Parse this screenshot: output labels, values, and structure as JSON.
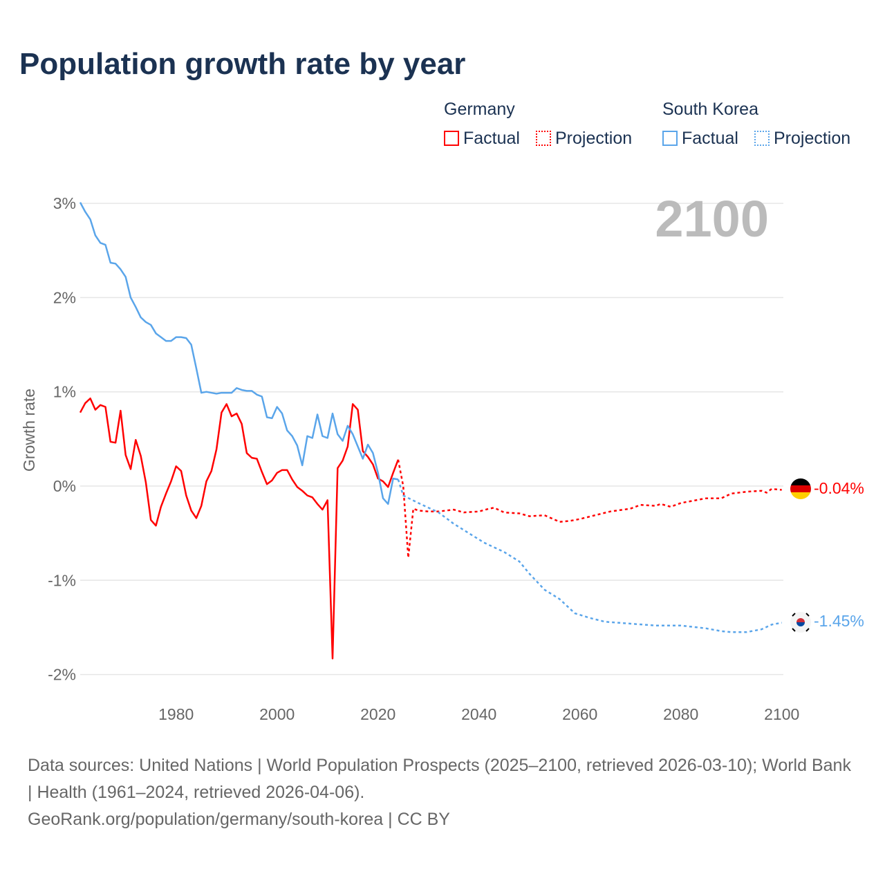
{
  "title": "Population growth rate by year",
  "legend": {
    "germany": {
      "name": "Germany",
      "factual": "Factual",
      "projection": "Projection"
    },
    "korea": {
      "name": "South Korea",
      "factual": "Factual",
      "projection": "Projection"
    }
  },
  "colors": {
    "germany": "#ff0000",
    "korea": "#5aa5ea",
    "title": "#1b3252"
  },
  "footer": {
    "sources": "Data sources: United Nations | World Population Prospects (2025–2100, retrieved 2026-03-10); World Bank | Health (1961–2024, retrieved 2026-04-06).",
    "credit": "GeoRank.org/population/germany/south-korea | CC BY"
  },
  "chart_data": {
    "type": "line",
    "title": "Population growth rate by year",
    "ylabel": "Growth rate",
    "xlabel": "",
    "year_label": "2100",
    "xlim": [
      1961,
      2100
    ],
    "ylim": [
      -2.2,
      3.2
    ],
    "x_ticks": [
      1980,
      2000,
      2020,
      2040,
      2060,
      2080,
      2100
    ],
    "x_tick_labels": [
      "1980",
      "2000",
      "2020",
      "2040",
      "2060",
      "2080",
      "2100"
    ],
    "y_ticks": [
      3,
      2,
      1,
      0,
      -1,
      -2
    ],
    "y_tick_labels": [
      "3%",
      "2%",
      "1%",
      "0%",
      "-1%",
      "-2%"
    ],
    "grid": true,
    "legend_position": "top-right",
    "series": [
      {
        "name": "Germany",
        "kind": "factual",
        "color": "#ff0000",
        "start_year": 1961,
        "values": [
          0.78,
          0.88,
          0.93,
          0.81,
          0.86,
          0.84,
          0.47,
          0.46,
          0.8,
          0.33,
          0.18,
          0.49,
          0.32,
          0.04,
          -0.36,
          -0.42,
          -0.22,
          -0.08,
          0.05,
          0.21,
          0.16,
          -0.1,
          -0.26,
          -0.34,
          -0.21,
          0.05,
          0.16,
          0.39,
          0.78,
          0.87,
          0.74,
          0.77,
          0.66,
          0.35,
          0.3,
          0.29,
          0.15,
          0.02,
          0.06,
          0.14,
          0.17,
          0.17,
          0.07,
          -0.01,
          -0.05,
          -0.1,
          -0.12,
          -0.19,
          -0.25,
          -0.15,
          -1.83,
          0.19,
          0.27,
          0.42,
          0.87,
          0.81,
          0.37,
          0.31,
          0.23,
          0.08,
          0.05,
          -0.01,
          0.14,
          0.28
        ]
      },
      {
        "name": "Germany",
        "kind": "projection",
        "color": "#ff0000",
        "years": [
          2024,
          2025,
          2026,
          2027,
          2028,
          2030,
          2032,
          2035,
          2037,
          2040,
          2042,
          2043,
          2045,
          2048,
          2050,
          2053,
          2056,
          2058,
          2060,
          2063,
          2066,
          2070,
          2072,
          2075,
          2076,
          2078,
          2080,
          2085,
          2088,
          2090,
          2093,
          2096,
          2097,
          2098,
          2100
        ],
        "values": [
          0.28,
          0.0,
          -0.76,
          -0.24,
          -0.26,
          -0.27,
          -0.27,
          -0.25,
          -0.28,
          -0.27,
          -0.24,
          -0.23,
          -0.28,
          -0.29,
          -0.32,
          -0.31,
          -0.38,
          -0.37,
          -0.35,
          -0.31,
          -0.27,
          -0.24,
          -0.2,
          -0.21,
          -0.19,
          -0.22,
          -0.18,
          -0.13,
          -0.13,
          -0.08,
          -0.06,
          -0.05,
          -0.07,
          -0.03,
          -0.04
        ],
        "end_label": "-0.04%"
      },
      {
        "name": "South Korea",
        "kind": "factual",
        "color": "#5aa5ea",
        "start_year": 1961,
        "values": [
          3.01,
          2.91,
          2.83,
          2.66,
          2.58,
          2.56,
          2.37,
          2.36,
          2.3,
          2.22,
          2.0,
          1.9,
          1.79,
          1.74,
          1.71,
          1.62,
          1.58,
          1.54,
          1.54,
          1.58,
          1.58,
          1.57,
          1.5,
          1.25,
          0.99,
          1.0,
          0.99,
          0.98,
          0.99,
          0.99,
          0.99,
          1.04,
          1.02,
          1.01,
          1.01,
          0.97,
          0.95,
          0.73,
          0.72,
          0.84,
          0.77,
          0.59,
          0.53,
          0.43,
          0.22,
          0.53,
          0.51,
          0.76,
          0.53,
          0.51,
          0.77,
          0.55,
          0.48,
          0.64,
          0.55,
          0.42,
          0.29,
          0.44,
          0.35,
          0.14,
          -0.13,
          -0.19,
          0.08,
          0.07
        ]
      },
      {
        "name": "South Korea",
        "kind": "projection",
        "color": "#5aa5ea",
        "years": [
          2024,
          2025,
          2028,
          2032,
          2035,
          2038,
          2041,
          2045,
          2048,
          2050,
          2053,
          2056,
          2059,
          2062,
          2065,
          2070,
          2075,
          2080,
          2085,
          2088,
          2090,
          2093,
          2096,
          2098,
          2100
        ],
        "values": [
          0.07,
          -0.1,
          -0.18,
          -0.28,
          -0.4,
          -0.5,
          -0.6,
          -0.7,
          -0.8,
          -0.93,
          -1.1,
          -1.2,
          -1.35,
          -1.4,
          -1.44,
          -1.46,
          -1.48,
          -1.48,
          -1.51,
          -1.54,
          -1.55,
          -1.55,
          -1.52,
          -1.47,
          -1.45
        ],
        "end_label": "-1.45%"
      }
    ]
  }
}
